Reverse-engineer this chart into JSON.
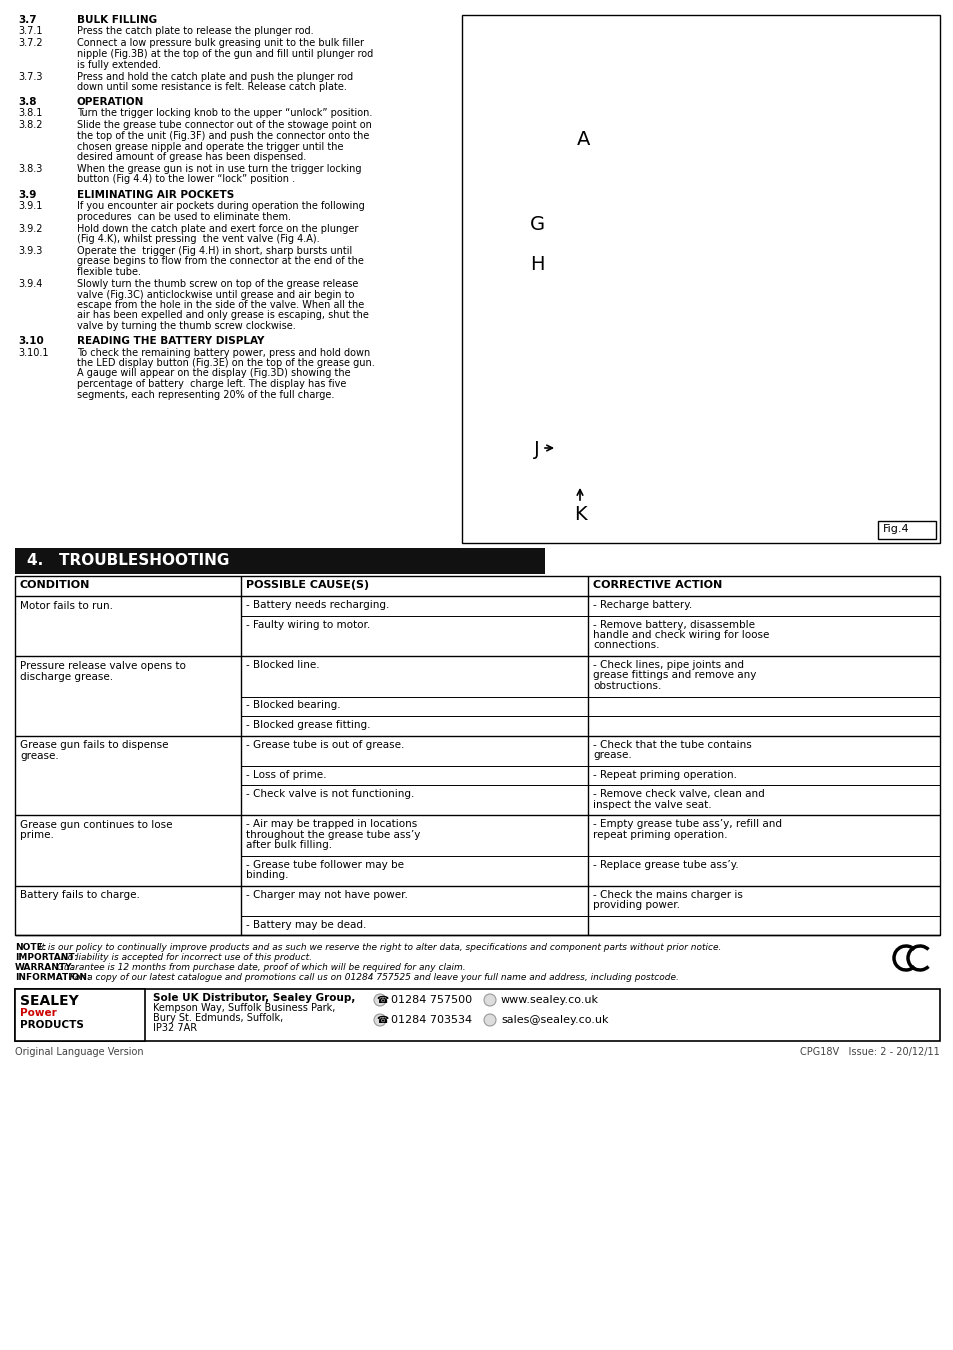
{
  "items_37": [
    [
      "3.7.1",
      "Press the catch plate to release the plunger rod."
    ],
    [
      "3.7.2",
      "Connect a low pressure bulk greasing unit to the bulk filler\nnipple (Fig.3B) at the top of the gun and fill until plunger rod\nis fully extended."
    ],
    [
      "3.7.3",
      "Press and hold the catch plate and push the plunger rod\ndown until some resistance is felt. Release catch plate."
    ]
  ],
  "items_38": [
    [
      "3.8.1",
      "Turn the trigger locking knob to the upper “unlock” position."
    ],
    [
      "3.8.2",
      "Slide the grease tube connector out of the stowage point on\nthe top of the unit (Fig.3F) and push the connector onto the\nchosen grease nipple and operate the trigger until the\ndesired amount of grease has been dispensed."
    ],
    [
      "3.8.3",
      "When the grease gun is not in use turn the trigger locking\nbutton (Fig 4.4) to the lower “lock” position ."
    ]
  ],
  "items_39": [
    [
      "3.9.1",
      "If you encounter air pockets during operation the following\nprocedures  can be used to eliminate them."
    ],
    [
      "3.9.2",
      "Hold down the catch plate and exert force on the plunger\n(Fig 4.K), whilst pressing  the vent valve (Fig 4.A)."
    ],
    [
      "3.9.3",
      "Operate the  trigger (Fig 4.H) in short, sharp bursts until\ngrease begins to flow from the connector at the end of the\nflexible tube."
    ],
    [
      "3.9.4",
      "Slowly turn the thumb screw on top of the grease release\nvalve (Fig.3C) anticlockwise until grease and air begin to\nescape from the hole in the side of the valve. When all the\nair has been expelled and only grease is escaping, shut the\nvalve by turning the thumb screw clockwise."
    ]
  ],
  "items_310": [
    [
      "3.10.1",
      "To check the remaining battery power, press and hold down\nthe LED display button (Fig.3E) on the top of the grease gun.\nA gauge will appear on the display (Fig.3D) showing the\npercentage of battery  charge left. The display has five\nsegments, each representing 20% of the full charge."
    ]
  ],
  "note_lines": [
    [
      "NOTE:",
      " It is our policy to continually improve products and as such we reserve the right to alter data, specifications and component parts without prior notice."
    ],
    [
      "IMPORTANT:",
      " No liability is accepted for incorrect use of this product."
    ],
    [
      "WARRANTY:",
      " Guarantee is 12 months from purchase date, proof of which will be required for any claim."
    ],
    [
      "INFORMATION:",
      " For a copy of our latest catalogue and promotions call us on 01284 757525 and leave your full name and address, including postcode."
    ]
  ],
  "footer_company_bold": "Sole UK Distributor, Sealey Group,",
  "footer_company_rest": "Kempson Way, Suffolk Business Park,\nBury St. Edmunds, Suffolk,\nIP32 7AR",
  "footer_phone1": "01284 757500",
  "footer_phone2": "01284 703534",
  "footer_web": "www.sealey.co.uk",
  "footer_email": "sales@sealey.co.uk",
  "footer_bottom": "Original Language Version",
  "footer_model": "CPG18V",
  "footer_issue": "Issue: 2 - 20/12/11",
  "table_row_data": [
    {
      "condition": "Motor fails to run.",
      "sub_rows": [
        [
          "- Battery needs recharging.",
          "- Recharge battery."
        ],
        [
          "- Faulty wiring to motor.",
          "- Remove battery, disassemble\nhandle and check wiring for loose\nconnections."
        ]
      ]
    },
    {
      "condition": "Pressure release valve opens to\ndischarge grease.",
      "sub_rows": [
        [
          "- Blocked line.",
          "- Check lines, pipe joints and\ngrease fittings and remove any\nobstructions."
        ],
        [
          "- Blocked bearing.",
          ""
        ],
        [
          "- Blocked grease fitting.",
          ""
        ]
      ]
    },
    {
      "condition": "Grease gun fails to dispense\ngrease.",
      "sub_rows": [
        [
          "- Grease tube is out of grease.",
          "- Check that the tube contains\ngrease."
        ],
        [
          "- Loss of prime.",
          "- Repeat priming operation."
        ],
        [
          "- Check valve is not functioning.",
          "- Remove check valve, clean and\ninspect the valve seat."
        ]
      ]
    },
    {
      "condition": "Grease gun continues to lose\nprime.",
      "sub_rows": [
        [
          "- Air may be trapped in locations\nthroughout the grease tube ass’y\nafter bulk filling.",
          "- Empty grease tube ass’y, refill and\nrepeat priming operation."
        ],
        [
          "- Grease tube follower may be\nbinding.",
          "- Replace grease tube ass’y."
        ]
      ]
    },
    {
      "condition": "Battery fails to charge.",
      "sub_rows": [
        [
          "- Charger may not have power.",
          "- Check the mains charger is\nproviding power."
        ],
        [
          "- Battery may be dead.",
          ""
        ]
      ]
    }
  ]
}
